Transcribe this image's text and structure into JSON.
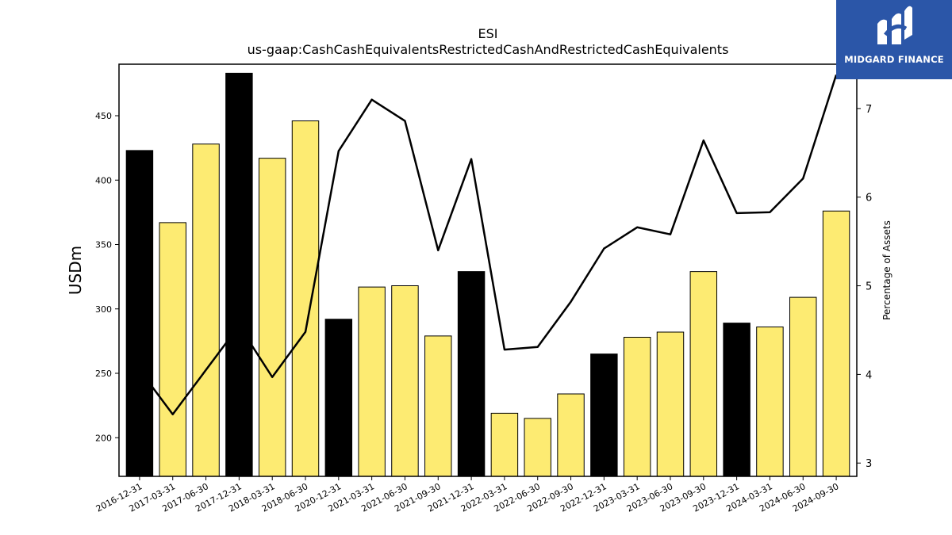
{
  "chart_data": {
    "type": "bar",
    "title": "ESI",
    "subtitle": "us-gaap:CashCashEquivalentsRestrictedCashAndRestrictedCashEquivalents",
    "ylabel": "USDm",
    "y2label": "Percentage of Assets",
    "ylim": [
      170,
      490
    ],
    "y2lim": [
      2.85,
      7.5
    ],
    "yticks": [
      200,
      250,
      300,
      350,
      400,
      450
    ],
    "y2ticks": [
      3,
      4,
      5,
      6,
      7
    ],
    "categories": [
      "2016-12-31",
      "2017-03-31",
      "2017-06-30",
      "2017-12-31",
      "2018-03-31",
      "2018-06-30",
      "2020-12-31",
      "2021-03-31",
      "2021-06-30",
      "2021-09-30",
      "2021-12-31",
      "2022-03-31",
      "2022-06-30",
      "2022-09-30",
      "2022-12-31",
      "2023-03-31",
      "2023-06-30",
      "2023-09-30",
      "2023-12-31",
      "2024-03-31",
      "2024-06-30",
      "2024-09-30"
    ],
    "series": [
      {
        "kind": "bar",
        "values": [
          423,
          367,
          428,
          483,
          417,
          446,
          292,
          317,
          318,
          279,
          329,
          219,
          215,
          234,
          265,
          278,
          282,
          329,
          289,
          286,
          309,
          376
        ],
        "is_year_end": [
          true,
          false,
          false,
          true,
          false,
          false,
          true,
          false,
          false,
          false,
          true,
          false,
          false,
          false,
          true,
          false,
          false,
          false,
          true,
          false,
          false,
          false
        ]
      },
      {
        "kind": "line",
        "axis": "right",
        "values": [
          4.05,
          3.55,
          4.05,
          4.55,
          3.97,
          4.48,
          6.52,
          7.1,
          6.86,
          5.4,
          6.43,
          4.28,
          4.31,
          4.82,
          5.42,
          5.66,
          5.58,
          6.64,
          5.82,
          5.83,
          6.21,
          7.38
        ]
      }
    ],
    "colors": {
      "year_end_bar": "#000000",
      "quarter_bar": "#fdeb72",
      "line": "#000000"
    },
    "grid": false,
    "legend": "none"
  },
  "logo": {
    "text": "MIDGARD FINANCE",
    "background": "#2b56a8"
  }
}
